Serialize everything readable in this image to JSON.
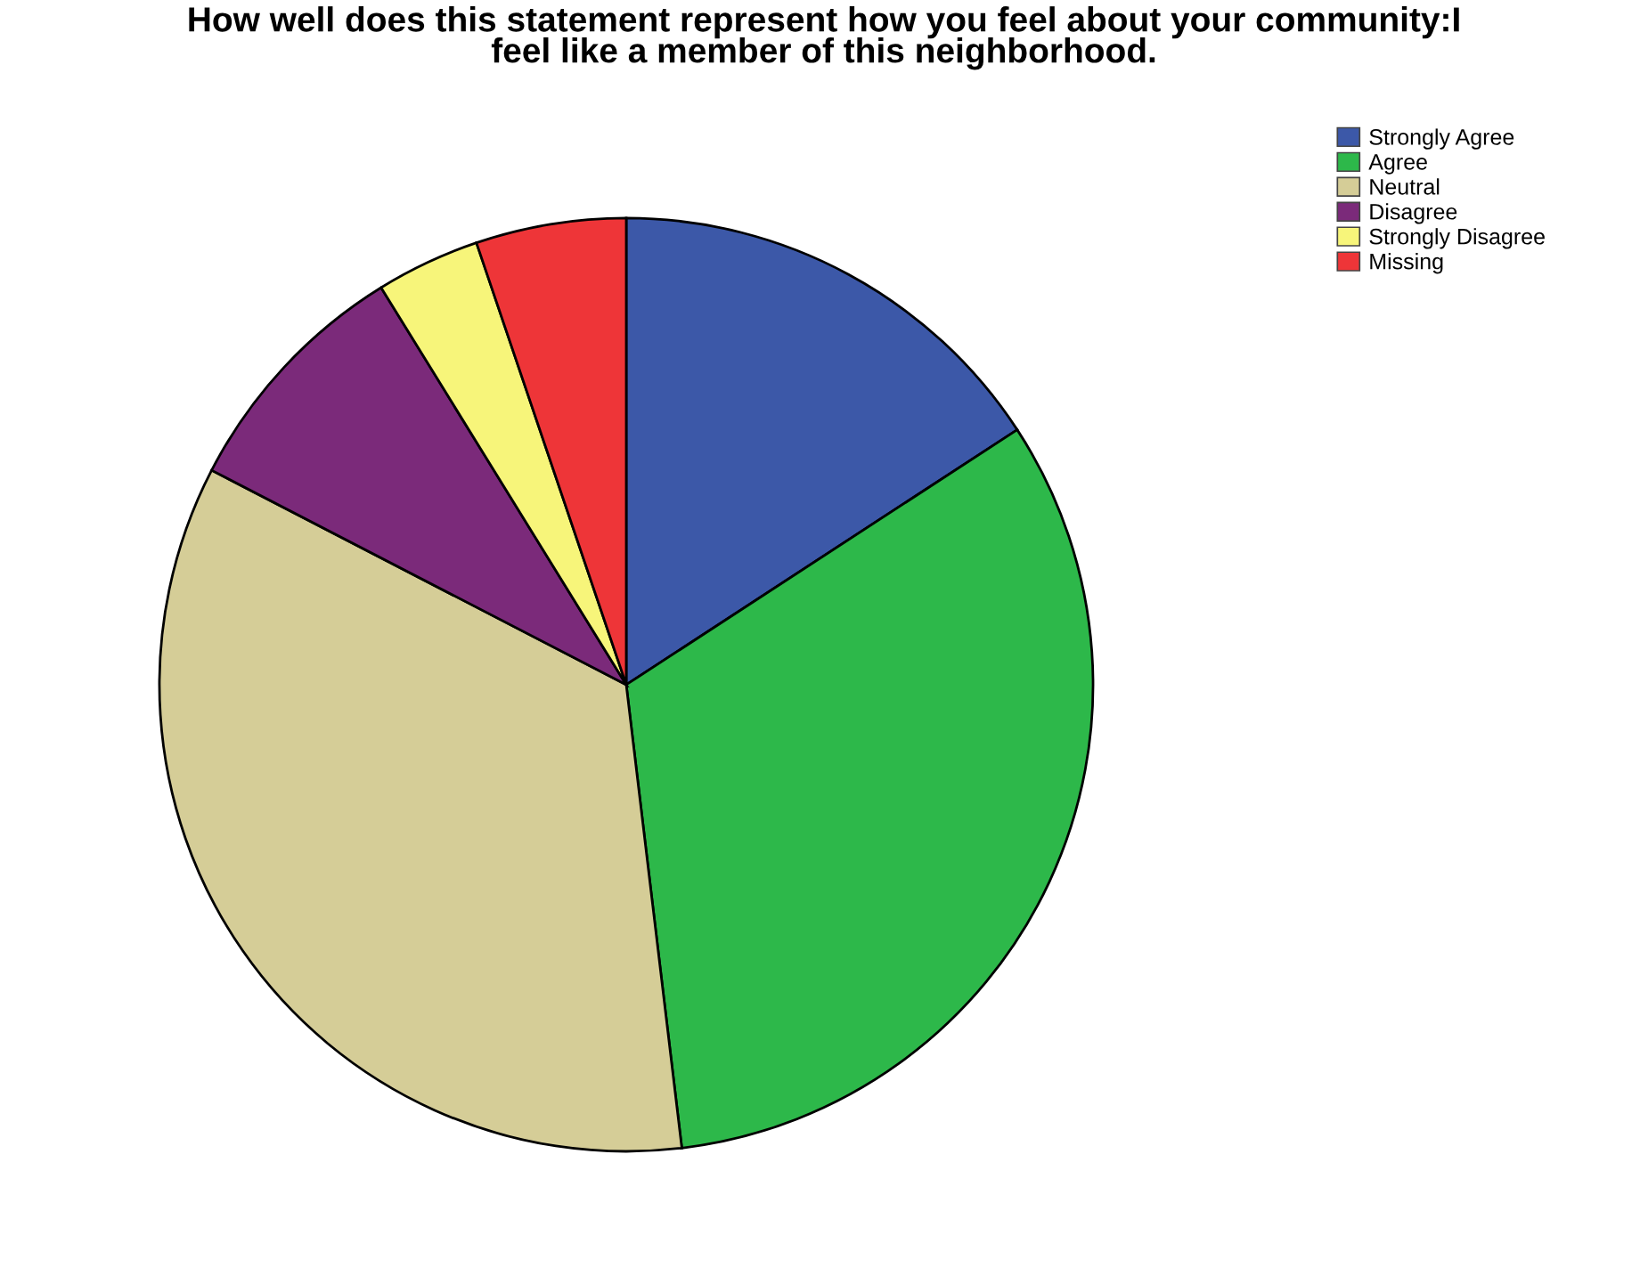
{
  "chart_data": {
    "type": "pie",
    "title": "How well does this statement represent how you feel about your community:I\nfeel like a member of this neighborhood.",
    "categories": [
      "Strongly Agree",
      "Agree",
      "Neutral",
      "Disagree",
      "Strongly Disagree",
      "Missing"
    ],
    "values": [
      15.8,
      32.3,
      34.5,
      8.6,
      3.6,
      5.2
    ],
    "colors": [
      "#3c58a8",
      "#2db84a",
      "#d5cd97",
      "#7b2a7a",
      "#f7f57a",
      "#ee3538"
    ],
    "legend": "top right"
  }
}
